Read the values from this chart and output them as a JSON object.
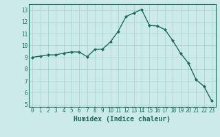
{
  "x": [
    0,
    1,
    2,
    3,
    4,
    5,
    6,
    7,
    8,
    9,
    10,
    11,
    12,
    13,
    14,
    15,
    16,
    17,
    18,
    19,
    20,
    21,
    22,
    23
  ],
  "y": [
    9.0,
    9.1,
    9.2,
    9.2,
    9.35,
    9.45,
    9.45,
    9.05,
    9.65,
    9.7,
    10.3,
    11.2,
    12.45,
    12.75,
    13.05,
    11.7,
    11.65,
    11.35,
    10.4,
    9.35,
    8.5,
    7.1,
    6.55,
    5.3
  ],
  "line_color": "#1a6b5a",
  "marker": "D",
  "marker_size": 2.0,
  "bg_color": "#cceaea",
  "grid_color": "#aad4d4",
  "xlabel": "Humidex (Indice chaleur)",
  "ylim": [
    4.8,
    13.5
  ],
  "xlim": [
    -0.5,
    23.5
  ],
  "yticks": [
    5,
    6,
    7,
    8,
    9,
    10,
    11,
    12,
    13
  ],
  "xticks": [
    0,
    1,
    2,
    3,
    4,
    5,
    6,
    7,
    8,
    9,
    10,
    11,
    12,
    13,
    14,
    15,
    16,
    17,
    18,
    19,
    20,
    21,
    22,
    23
  ],
  "axis_color": "#1a6b5a",
  "tick_fontsize": 5.5,
  "xlabel_fontsize": 7.0
}
